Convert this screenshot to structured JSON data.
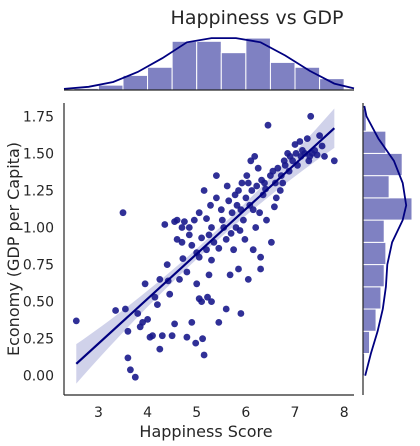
{
  "chart_data": {
    "type": "scatter",
    "title": "Happiness vs GDP",
    "xlabel": "Happiness Score",
    "ylabel": "Economy (GDP per Capita)",
    "xlim": [
      2.3,
      8.2
    ],
    "ylim": [
      -0.13,
      1.84
    ],
    "xticks": [
      "3",
      "4",
      "5",
      "6",
      "7",
      "8"
    ],
    "yticks": [
      "0.00",
      "0.25",
      "0.50",
      "0.75",
      "1.00",
      "1.25",
      "1.50",
      "1.75"
    ],
    "grid": false,
    "colors": {
      "points": "#1a1a8c",
      "regression": "#000080",
      "ci_band": "#c8cae6",
      "hist_bar": "#7f81c2",
      "frame": "#262626"
    },
    "points": [
      [
        2.55,
        0.37
      ],
      [
        3.35,
        0.44
      ],
      [
        3.5,
        1.1
      ],
      [
        3.55,
        0.45
      ],
      [
        3.6,
        0.3
      ],
      [
        3.6,
        0.12
      ],
      [
        3.65,
        0.04
      ],
      [
        3.75,
        -0.01
      ],
      [
        3.8,
        0.42
      ],
      [
        3.9,
        0.36
      ],
      [
        3.95,
        0.62
      ],
      [
        4.0,
        0.38
      ],
      [
        4.1,
        0.27
      ],
      [
        4.15,
        0.53
      ],
      [
        4.2,
        0.48
      ],
      [
        4.25,
        0.65
      ],
      [
        4.3,
        0.27
      ],
      [
        4.4,
        0.75
      ],
      [
        4.45,
        0.55
      ],
      [
        4.5,
        0.27
      ],
      [
        4.55,
        0.35
      ],
      [
        4.55,
        1.04
      ],
      [
        4.6,
        0.92
      ],
      [
        4.65,
        0.65
      ],
      [
        4.7,
        1.0
      ],
      [
        4.72,
        0.79
      ],
      [
        4.75,
        1.04
      ],
      [
        4.8,
        0.7
      ],
      [
        4.8,
        0.26
      ],
      [
        4.85,
        1.0
      ],
      [
        4.85,
        0.95
      ],
      [
        4.9,
        0.88
      ],
      [
        4.9,
        0.36
      ],
      [
        4.95,
        1.05
      ],
      [
        5.0,
        0.83
      ],
      [
        5.0,
        0.62
      ],
      [
        5.05,
        0.52
      ],
      [
        5.05,
        1.1
      ],
      [
        5.1,
        0.93
      ],
      [
        5.1,
        0.5
      ],
      [
        5.12,
        0.25
      ],
      [
        5.15,
        1.25
      ],
      [
        5.2,
        0.85
      ],
      [
        5.2,
        1.06
      ],
      [
        5.22,
        0.53
      ],
      [
        5.25,
        0.95
      ],
      [
        5.28,
        1.15
      ],
      [
        5.3,
        0.78
      ],
      [
        5.3,
        1.0
      ],
      [
        5.35,
        0.9
      ],
      [
        5.4,
        1.2
      ],
      [
        5.4,
        1.35
      ],
      [
        5.45,
        0.86
      ],
      [
        5.5,
        1.12
      ],
      [
        5.52,
        1.05
      ],
      [
        5.55,
        1.0
      ],
      [
        5.6,
        0.92
      ],
      [
        5.62,
        1.28
      ],
      [
        5.65,
        1.18
      ],
      [
        5.68,
        0.68
      ],
      [
        5.7,
        0.96
      ],
      [
        5.72,
        1.1
      ],
      [
        5.75,
        0.85
      ],
      [
        5.78,
        1.22
      ],
      [
        5.8,
        1.0
      ],
      [
        5.82,
        1.15
      ],
      [
        5.85,
        1.25
      ],
      [
        5.88,
        0.98
      ],
      [
        5.9,
        1.12
      ],
      [
        5.92,
        1.3
      ],
      [
        5.95,
        1.05
      ],
      [
        5.98,
        0.92
      ],
      [
        6.0,
        1.2
      ],
      [
        6.02,
        1.35
      ],
      [
        6.05,
        1.3
      ],
      [
        6.08,
        1.15
      ],
      [
        6.1,
        1.45
      ],
      [
        6.12,
        1.25
      ],
      [
        6.15,
        0.85
      ],
      [
        6.18,
        1.48
      ],
      [
        6.2,
        1.0
      ],
      [
        6.22,
        1.28
      ],
      [
        6.25,
        1.4
      ],
      [
        6.28,
        1.1
      ],
      [
        6.3,
        0.8
      ],
      [
        6.32,
        1.32
      ],
      [
        6.35,
        1.22
      ],
      [
        6.38,
        1.3
      ],
      [
        6.4,
        1.26
      ],
      [
        6.42,
        1.05
      ],
      [
        6.45,
        1.69
      ],
      [
        6.5,
        1.35
      ],
      [
        6.52,
        0.9
      ],
      [
        6.55,
        1.38
      ],
      [
        6.6,
        1.3
      ],
      [
        6.62,
        1.2
      ],
      [
        6.65,
        1.4
      ],
      [
        6.7,
        1.25
      ],
      [
        6.72,
        1.35
      ],
      [
        6.75,
        1.3
      ],
      [
        6.78,
        1.45
      ],
      [
        6.8,
        1.42
      ],
      [
        6.85,
        1.5
      ],
      [
        6.88,
        1.38
      ],
      [
        6.9,
        1.48
      ],
      [
        6.95,
        1.45
      ],
      [
        7.0,
        1.56
      ],
      [
        7.02,
        1.5
      ],
      [
        7.05,
        1.42
      ],
      [
        7.1,
        1.58
      ],
      [
        7.12,
        1.48
      ],
      [
        7.15,
        1.52
      ],
      [
        7.2,
        1.5
      ],
      [
        7.25,
        1.6
      ],
      [
        7.28,
        1.45
      ],
      [
        7.3,
        1.48
      ],
      [
        7.32,
        1.75
      ],
      [
        7.35,
        1.5
      ],
      [
        7.4,
        1.52
      ],
      [
        7.45,
        1.49
      ],
      [
        7.5,
        1.62
      ],
      [
        7.55,
        1.55
      ],
      [
        7.6,
        1.48
      ],
      [
        7.8,
        1.45
      ],
      [
        4.05,
        0.26
      ],
      [
        4.35,
        1.02
      ],
      [
        5.6,
        0.45
      ],
      [
        5.9,
        0.42
      ],
      [
        6.3,
        0.72
      ],
      [
        4.98,
        0.22
      ],
      [
        5.15,
        0.14
      ],
      [
        4.25,
        0.18
      ],
      [
        3.85,
        0.33
      ],
      [
        4.6,
        1.05
      ],
      [
        5.3,
        0.5
      ],
      [
        5.45,
        0.36
      ],
      [
        5.85,
        0.72
      ],
      [
        6.05,
        0.65
      ],
      [
        6.15,
        1.12
      ],
      [
        6.58,
        1.14
      ],
      [
        4.7,
        0.9
      ],
      [
        4.42,
        0.64
      ],
      [
        5.05,
        0.8
      ],
      [
        5.25,
        0.68
      ]
    ],
    "regression": {
      "x": [
        2.55,
        7.8
      ],
      "y": [
        0.08,
        1.67
      ]
    },
    "x_marginal": {
      "bins": [
        2.5,
        3.0,
        3.5,
        4.0,
        4.5,
        5.0,
        5.5,
        6.0,
        6.5,
        7.0,
        7.5,
        8.0
      ],
      "counts": [
        1,
        3,
        9,
        14,
        30,
        30,
        23,
        32,
        17,
        14,
        7
      ],
      "kde": [
        [
          2.3,
          0.02
        ],
        [
          2.8,
          0.06
        ],
        [
          3.3,
          0.15
        ],
        [
          3.8,
          0.34
        ],
        [
          4.3,
          0.6
        ],
        [
          4.8,
          0.9
        ],
        [
          5.3,
          0.98
        ],
        [
          5.8,
          0.98
        ],
        [
          6.3,
          0.9
        ],
        [
          6.8,
          0.65
        ],
        [
          7.3,
          0.36
        ],
        [
          7.8,
          0.12
        ],
        [
          8.2,
          0.03
        ]
      ]
    },
    "y_marginal": {
      "bins": [
        0.0,
        0.15,
        0.3,
        0.45,
        0.6,
        0.75,
        0.9,
        1.05,
        1.2,
        1.35,
        1.5,
        1.65,
        1.8
      ],
      "counts": [
        1,
        4,
        8,
        11,
        13,
        14,
        13,
        30,
        16,
        24,
        14,
        2
      ],
      "kde": [
        [
          0.0,
          0.05
        ],
        [
          0.15,
          0.18
        ],
        [
          0.3,
          0.33
        ],
        [
          0.45,
          0.45
        ],
        [
          0.6,
          0.52
        ],
        [
          0.75,
          0.55
        ],
        [
          0.9,
          0.66
        ],
        [
          1.05,
          0.9
        ],
        [
          1.15,
          0.98
        ],
        [
          1.3,
          0.9
        ],
        [
          1.45,
          0.7
        ],
        [
          1.6,
          0.35
        ],
        [
          1.75,
          0.08
        ],
        [
          1.82,
          0.03
        ]
      ]
    }
  }
}
